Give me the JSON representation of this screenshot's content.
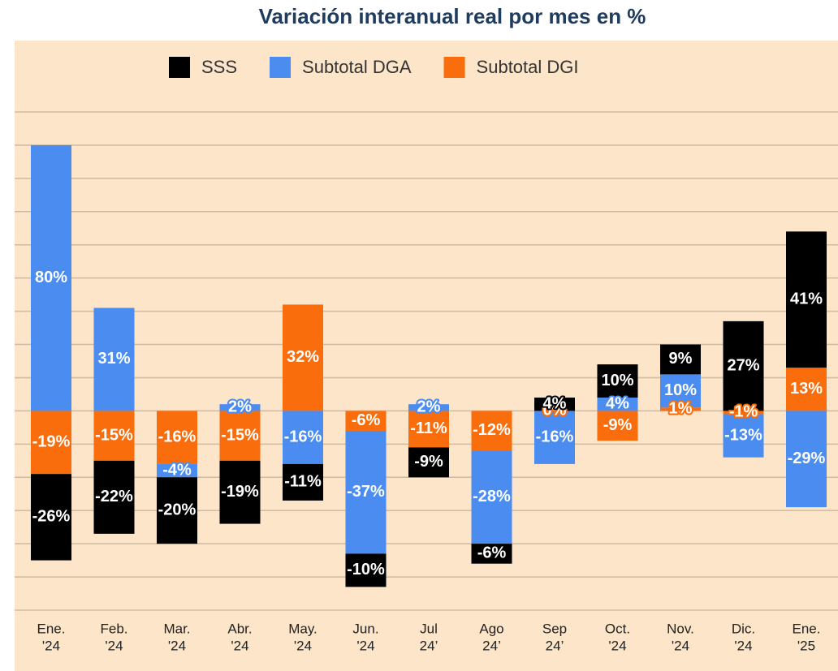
{
  "chart_data": {
    "type": "stacked_bar",
    "title": "Variación interanual real por mes en %",
    "categories": [
      [
        "Ene.",
        "'24"
      ],
      [
        "Feb.",
        "'24"
      ],
      [
        "Mar.",
        "'24"
      ],
      [
        "Abr.",
        "'24"
      ],
      [
        "May.",
        "'24"
      ],
      [
        "Jun.",
        "'24"
      ],
      [
        "Jul",
        "24’"
      ],
      [
        "Ago",
        "24’"
      ],
      [
        "Sep",
        "24’"
      ],
      [
        "Oct.",
        "'24"
      ],
      [
        "Nov.",
        "'24"
      ],
      [
        "Dic.",
        "'24"
      ],
      [
        "Ene.",
        "'25"
      ]
    ],
    "series": [
      {
        "name": "SSS",
        "color": "#000000",
        "values": [
          -26,
          -22,
          -20,
          -19,
          -11,
          -10,
          -9,
          -6,
          4,
          10,
          9,
          27,
          41
        ],
        "value_labels": [
          "-26%",
          "-22%",
          "-20%",
          "-19%",
          "-11%",
          "-10%",
          "-9%",
          "-6%",
          "4%",
          "10%",
          "9%",
          "27%",
          "41%"
        ]
      },
      {
        "name": "Subtotal DGA",
        "color": "#4a8cf0",
        "values": [
          80,
          31,
          -4,
          2,
          -16,
          -37,
          2,
          -28,
          -16,
          4,
          10,
          -13,
          -29
        ],
        "value_labels": [
          "80%",
          "31%",
          "-4%",
          "2%",
          "-16%",
          "-37%",
          "2%",
          "-28%",
          "-16%",
          "4%",
          "10%",
          "-13%",
          "-29%"
        ]
      },
      {
        "name": "Subtotal DGI",
        "color": "#f96d0c",
        "values": [
          -19,
          -15,
          -16,
          -15,
          32,
          -6,
          -11,
          -12,
          0,
          -9,
          1,
          -1,
          13
        ],
        "value_labels": [
          "-19%",
          "-15%",
          "-16%",
          "-15%",
          "32%",
          "-6%",
          "-11%",
          "-12%",
          "0%",
          "-9%",
          "1%",
          "-1%",
          "13%"
        ]
      }
    ],
    "stack_order": [
      "Subtotal DGI",
      "Subtotal DGA",
      "SSS"
    ],
    "ylim": [
      -60,
      90
    ],
    "yticks": [
      -60,
      -50,
      -40,
      -30,
      -20,
      -10,
      0,
      10,
      20,
      30,
      40,
      50,
      60,
      70,
      80,
      90
    ],
    "grid": true,
    "legend": "top"
  }
}
